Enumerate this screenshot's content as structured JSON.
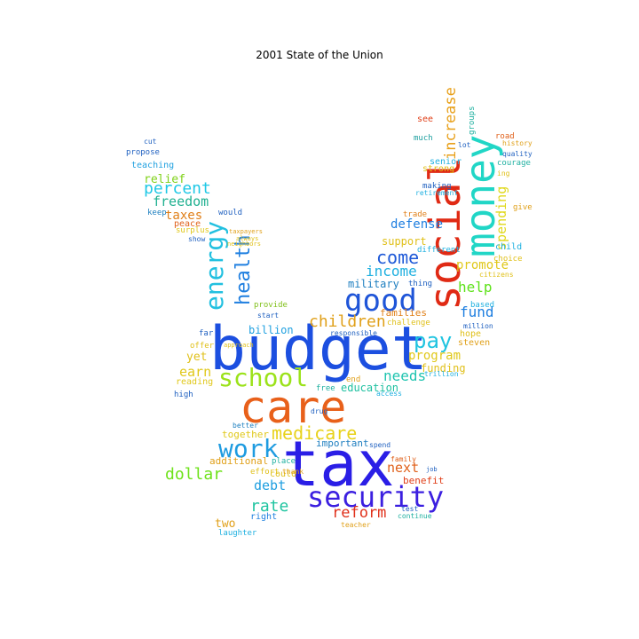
{
  "title": "2001 State of the Union",
  "words": [
    {
      "t": "budget",
      "c": "#1c4fe0"
    },
    {
      "t": "tax",
      "c": "#2a1ee6"
    },
    {
      "t": "care",
      "c": "#e8601a"
    },
    {
      "t": "social",
      "c": "#e02a14"
    },
    {
      "t": "money",
      "c": "#21d6c6"
    },
    {
      "t": "security",
      "c": "#3b1fe0"
    },
    {
      "t": "school",
      "c": "#9be21a"
    },
    {
      "t": "work",
      "c": "#1e9be0"
    },
    {
      "t": "good",
      "c": "#1f55d8"
    },
    {
      "t": "energy",
      "c": "#22c0e0"
    },
    {
      "t": "health",
      "c": "#1f7fe0"
    },
    {
      "t": "medicare",
      "c": "#e8d21a"
    },
    {
      "t": "pay",
      "c": "#1fc4e0"
    },
    {
      "t": "children",
      "c": "#e0a01a"
    },
    {
      "t": "percent",
      "c": "#1fc8e6"
    },
    {
      "t": "increase",
      "c": "#e8a01a"
    },
    {
      "t": "spending",
      "c": "#e0d81a"
    },
    {
      "t": "dollar",
      "c": "#6ee21a"
    },
    {
      "t": "rate",
      "c": "#1fc4a0"
    },
    {
      "t": "reform",
      "c": "#e0301a"
    },
    {
      "t": "come",
      "c": "#1f5ad8"
    },
    {
      "t": "income",
      "c": "#1fb0e0"
    },
    {
      "t": "help",
      "c": "#5ee21a"
    },
    {
      "t": "fund",
      "c": "#1f7fe0"
    },
    {
      "t": "needs",
      "c": "#1fc4b0"
    },
    {
      "t": "earn",
      "c": "#e0c81a"
    },
    {
      "t": "next",
      "c": "#e0601a"
    },
    {
      "t": "debt",
      "c": "#1f9fe0"
    },
    {
      "t": "defense",
      "c": "#1f7fe0"
    },
    {
      "t": "freedom",
      "c": "#1fb090"
    },
    {
      "t": "taxes",
      "c": "#e0801a"
    },
    {
      "t": "relief",
      "c": "#80d21a"
    },
    {
      "t": "promote",
      "c": "#e0c81a"
    },
    {
      "t": "program",
      "c": "#e0c81a"
    },
    {
      "t": "military",
      "c": "#1f7fc0"
    },
    {
      "t": "support",
      "c": "#e0c01a"
    },
    {
      "t": "billion",
      "c": "#1fa0e0"
    },
    {
      "t": "two",
      "c": "#e0a01a"
    },
    {
      "t": "together",
      "c": "#e0c81a"
    },
    {
      "t": "additional",
      "c": "#e0a01a"
    },
    {
      "t": "yet",
      "c": "#e0c01a"
    },
    {
      "t": "education",
      "c": "#1fc0a0"
    },
    {
      "t": "families",
      "c": "#e0801a"
    },
    {
      "t": "funding",
      "c": "#e0c01a"
    },
    {
      "t": "benefit",
      "c": "#e0401a"
    },
    {
      "t": "important",
      "c": "#1f7fc0"
    },
    {
      "t": "teaching",
      "c": "#1fa0e0"
    },
    {
      "t": "could",
      "c": "#e0c01a"
    },
    {
      "t": "right",
      "c": "#1f80e0"
    },
    {
      "t": "laughter",
      "c": "#1fb0e0"
    },
    {
      "t": "reading",
      "c": "#e0c81a"
    },
    {
      "t": "high",
      "c": "#1f60c0"
    },
    {
      "t": "offer",
      "c": "#e0c01a"
    },
    {
      "t": "far",
      "c": "#1f60c0"
    },
    {
      "t": "peace",
      "c": "#e0601a"
    },
    {
      "t": "surplus",
      "c": "#e0c81a"
    },
    {
      "t": "show",
      "c": "#1f60c0"
    },
    {
      "t": "would",
      "c": "#1f60c0"
    },
    {
      "t": "keep",
      "c": "#1f80c0"
    },
    {
      "t": "propose",
      "c": "#1f60c0"
    },
    {
      "t": "cut",
      "c": "#1f60c0"
    },
    {
      "t": "provide",
      "c": "#80c01a"
    },
    {
      "t": "start",
      "c": "#1f60c0"
    },
    {
      "t": "see",
      "c": "#e0401a"
    },
    {
      "t": "much",
      "c": "#1fa0a0"
    },
    {
      "t": "senior",
      "c": "#1fb0e0"
    },
    {
      "t": "strong",
      "c": "#e0c01a"
    },
    {
      "t": "making",
      "c": "#1f60c0"
    },
    {
      "t": "retirement",
      "c": "#1fb0e0"
    },
    {
      "t": "trade",
      "c": "#e0801a"
    },
    {
      "t": "thing",
      "c": "#1f60c0"
    },
    {
      "t": "different",
      "c": "#1fb0e0"
    },
    {
      "t": "hope",
      "c": "#e0c01a"
    },
    {
      "t": "steven",
      "c": "#e0a01a"
    },
    {
      "t": "million",
      "c": "#1f60c0"
    },
    {
      "t": "based",
      "c": "#1fb0e0"
    },
    {
      "t": "citizens",
      "c": "#e0c01a"
    },
    {
      "t": "child",
      "c": "#1fb0e0"
    },
    {
      "t": "choice",
      "c": "#e0c01a"
    },
    {
      "t": "give",
      "c": "#e0a01a"
    },
    {
      "t": "road",
      "c": "#e0601a"
    },
    {
      "t": "history",
      "c": "#e0a01a"
    },
    {
      "t": "quality",
      "c": "#1f60c0"
    },
    {
      "t": "courage",
      "c": "#1fb0a0"
    },
    {
      "t": "ing",
      "c": "#e0c01a"
    },
    {
      "t": "trillion",
      "c": "#1fb0e0"
    },
    {
      "t": "free",
      "c": "#1fb0a0"
    },
    {
      "t": "end",
      "c": "#e0a01a"
    },
    {
      "t": "challenge",
      "c": "#e0c01a"
    },
    {
      "t": "responsible",
      "c": "#1f60c0"
    },
    {
      "t": "better",
      "c": "#1f80c0"
    },
    {
      "t": "place",
      "c": "#1fb0a0"
    },
    {
      "t": "effort",
      "c": "#e0c01a"
    },
    {
      "t": "thank",
      "c": "#e0a01a"
    },
    {
      "t": "teacher",
      "c": "#e0a01a"
    },
    {
      "t": "continue",
      "c": "#1fb0a0"
    },
    {
      "t": "test",
      "c": "#1f60c0"
    },
    {
      "t": "spend",
      "c": "#1f60c0"
    },
    {
      "t": "family",
      "c": "#e0601a"
    },
    {
      "t": "access",
      "c": "#1fb0e0"
    },
    {
      "t": "drug",
      "c": "#1f60c0"
    },
    {
      "t": "groups",
      "c": "#1fb0a0"
    },
    {
      "t": "lot",
      "c": "#1f60c0"
    },
    {
      "t": "job",
      "c": "#1f60c0"
    },
    {
      "t": "approach",
      "c": "#e0c01a"
    },
    {
      "t": "taxpayers",
      "c": "#e0a01a"
    },
    {
      "t": "neighbors",
      "c": "#e0c01a"
    },
    {
      "t": "always",
      "c": "#e0c01a"
    }
  ]
}
